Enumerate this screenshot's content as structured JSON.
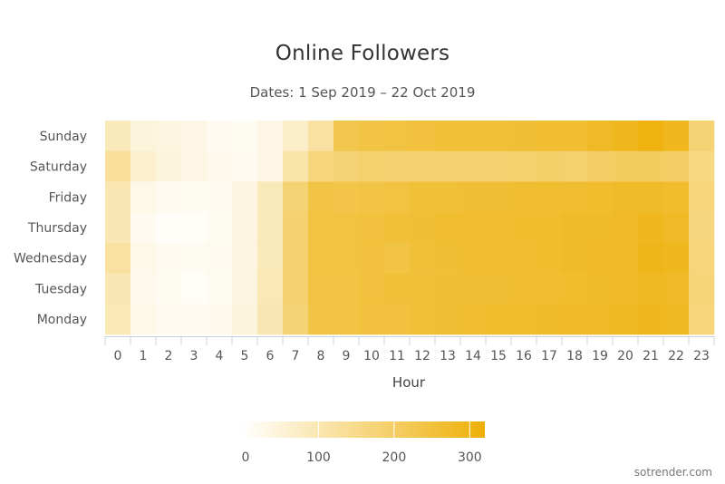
{
  "chart_data": {
    "type": "heatmap",
    "title": "Online Followers",
    "subtitle": "Dates: 1 Sep 2019 – 22 Oct 2019",
    "xlabel": "Hour",
    "ylabel": "",
    "x_categories": [
      "0",
      "1",
      "2",
      "3",
      "4",
      "5",
      "6",
      "7",
      "8",
      "9",
      "10",
      "11",
      "12",
      "13",
      "14",
      "15",
      "16",
      "17",
      "18",
      "19",
      "20",
      "21",
      "22",
      "23"
    ],
    "y_categories": [
      "Sunday",
      "Saturday",
      "Friday",
      "Thursday",
      "Wednesday",
      "Tuesday",
      "Monday"
    ],
    "values": [
      [
        90,
        45,
        40,
        35,
        20,
        15,
        35,
        70,
        120,
        230,
        240,
        245,
        250,
        255,
        255,
        255,
        260,
        265,
        265,
        280,
        290,
        310,
        290,
        180
      ],
      [
        130,
        60,
        45,
        35,
        25,
        20,
        35,
        110,
        170,
        180,
        190,
        185,
        185,
        185,
        185,
        185,
        190,
        195,
        190,
        200,
        205,
        205,
        200,
        160
      ],
      [
        100,
        30,
        20,
        15,
        20,
        40,
        90,
        180,
        240,
        235,
        240,
        245,
        255,
        255,
        260,
        260,
        265,
        265,
        265,
        270,
        275,
        275,
        270,
        170
      ],
      [
        100,
        20,
        10,
        10,
        15,
        40,
        90,
        185,
        245,
        245,
        250,
        255,
        260,
        265,
        265,
        265,
        270,
        270,
        275,
        275,
        280,
        290,
        280,
        165
      ],
      [
        120,
        30,
        20,
        15,
        20,
        40,
        90,
        185,
        245,
        245,
        250,
        240,
        255,
        260,
        265,
        265,
        265,
        270,
        275,
        280,
        280,
        295,
        290,
        170
      ],
      [
        100,
        25,
        15,
        10,
        15,
        40,
        95,
        185,
        240,
        240,
        250,
        255,
        255,
        260,
        260,
        260,
        265,
        265,
        270,
        275,
        280,
        285,
        280,
        175
      ],
      [
        95,
        30,
        20,
        20,
        25,
        45,
        100,
        180,
        240,
        240,
        250,
        250,
        255,
        260,
        265,
        270,
        270,
        275,
        280,
        280,
        285,
        290,
        285,
        170
      ]
    ],
    "color_scale": {
      "min": 0,
      "max": 320,
      "low_color": "#ffffff",
      "high_color": "#eeb007"
    },
    "legend": {
      "ticks": [
        "0",
        "100",
        "200",
        "300"
      ],
      "tick_values": [
        0,
        100,
        200,
        300
      ],
      "range": [
        0,
        320
      ]
    }
  },
  "footer": {
    "watermark": "sotrender.com"
  }
}
